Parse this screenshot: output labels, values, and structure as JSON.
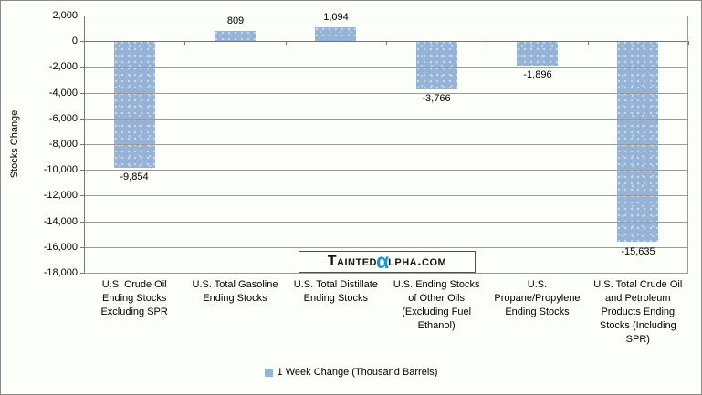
{
  "chart_data": {
    "type": "bar",
    "categories": [
      "U.S. Crude Oil Ending Stocks Excluding SPR",
      "U.S. Total Gasoline Ending Stocks",
      "U.S. Total Distillate Ending Stocks",
      "U.S. Ending Stocks of Other Oils (Excluding Fuel Ethanol)",
      "U.S. Propane/Propylene Ending Stocks",
      "U.S. Total Crude Oil and Petroleum Products Ending Stocks (Including SPR)"
    ],
    "values": [
      -9854,
      809,
      1094,
      -3766,
      -1896,
      -15635
    ],
    "value_labels": [
      "-9,854",
      "809",
      "1,094",
      "-3,766",
      "-1,896",
      "-15,635"
    ],
    "title": "",
    "xlabel": "",
    "ylabel": "Stocks Change",
    "ylim": [
      -18000,
      2000
    ],
    "ytick_step": 2000,
    "ytick_labels": [
      "2,000",
      "0",
      "-2,000",
      "-4,000",
      "-6,000",
      "-8,000",
      "-10,000",
      "-12,000",
      "-14,000",
      "-16,000",
      "-18,000"
    ],
    "grid": true,
    "legend": "1 Week Change (Thousand Barrels)",
    "legend_position": "bottom",
    "bar_color": "#95B3D7",
    "gridline_color": "#9a9a9a"
  },
  "watermark": {
    "part1": "Tainted",
    "alpha": "α",
    "part2": "lpha.com",
    "alpha_color": "#1697D8"
  }
}
